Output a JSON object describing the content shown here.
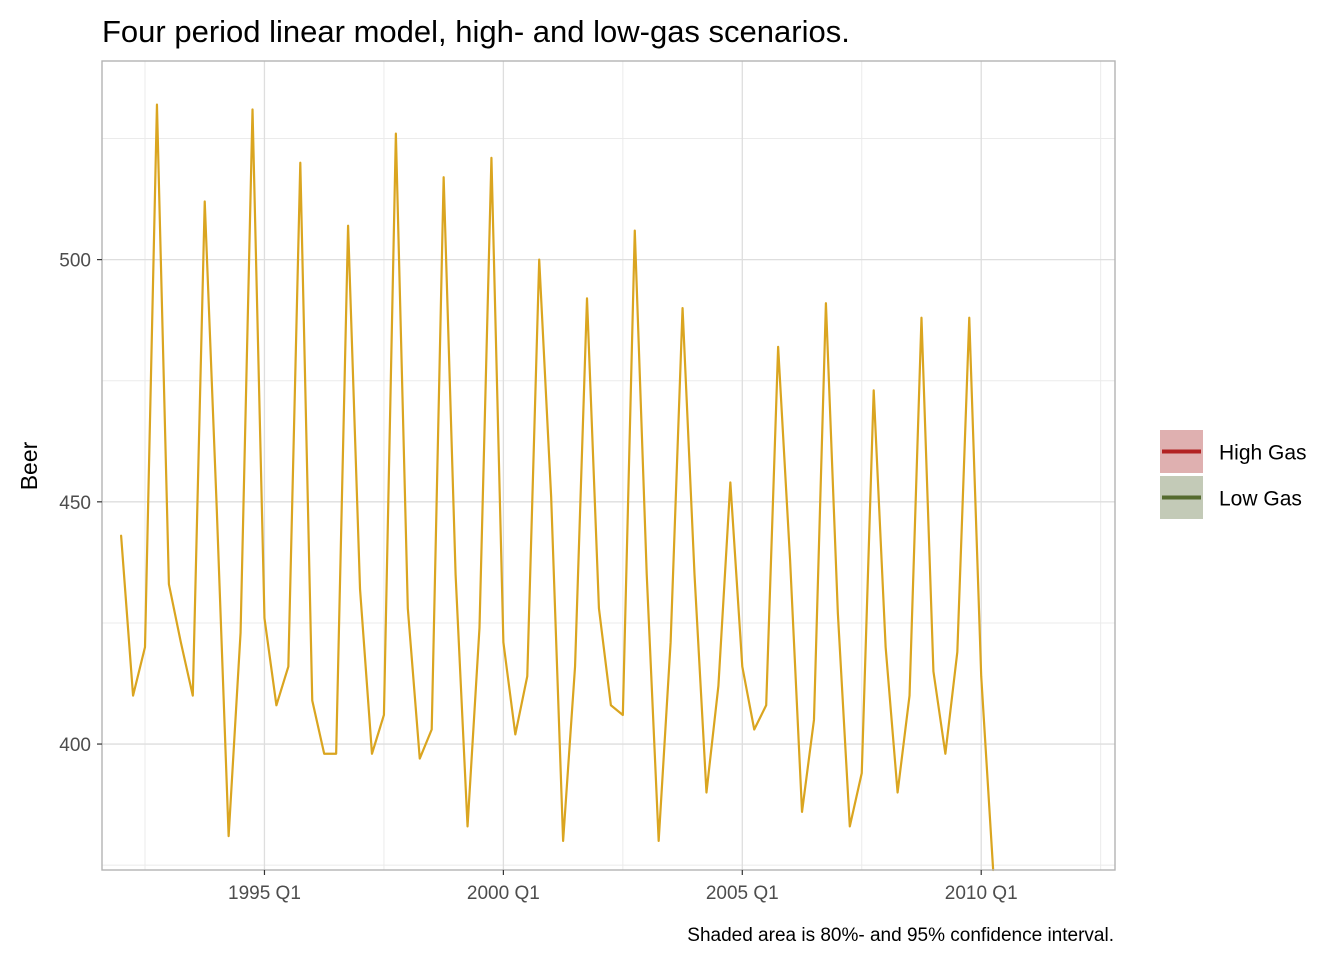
{
  "chart_data": {
    "type": "line",
    "title": "Four period linear model, high- and low-gas scenarios.",
    "caption": "Shaded area is 80%- and 95% confidence interval.",
    "xlabel": "",
    "ylabel": "Beer",
    "xlim": [
      1991.6,
      2012.8
    ],
    "ylim": [
      374,
      541
    ],
    "y_ticks": [
      400,
      450,
      500
    ],
    "x_ticks": [
      {
        "value": 1995.0,
        "label": "1995 Q1"
      },
      {
        "value": 2000.0,
        "label": "2000 Q1"
      },
      {
        "value": 2005.0,
        "label": "2005 Q1"
      },
      {
        "value": 2010.0,
        "label": "2010 Q1"
      }
    ],
    "grid": true,
    "legend_position": "right",
    "legend": [
      {
        "label": "High Gas",
        "line_color": "#b22222",
        "fill_color": "#dfb0b0"
      },
      {
        "label": "Low Gas",
        "line_color": "#556b2f",
        "fill_color": "#c3cab7"
      }
    ],
    "series": [
      {
        "color": "#daa520",
        "start_year": 1992.0,
        "step": 0.25,
        "values": [
          443,
          410,
          420,
          532,
          433,
          421,
          410,
          512,
          449,
          381,
          423,
          531,
          426,
          408,
          416,
          520,
          409,
          398,
          398,
          507,
          432,
          398,
          406,
          526,
          428,
          397,
          403,
          517,
          435,
          383,
          424,
          521,
          421,
          402,
          414,
          500,
          451,
          380,
          416,
          492,
          428,
          408,
          406,
          506,
          435,
          380,
          421,
          490,
          435,
          390,
          412,
          454,
          416,
          403,
          408,
          482,
          438,
          386,
          405,
          491,
          427,
          383,
          394,
          473,
          420,
          390,
          410,
          488,
          415,
          398,
          419,
          488,
          414,
          374
        ]
      }
    ]
  }
}
